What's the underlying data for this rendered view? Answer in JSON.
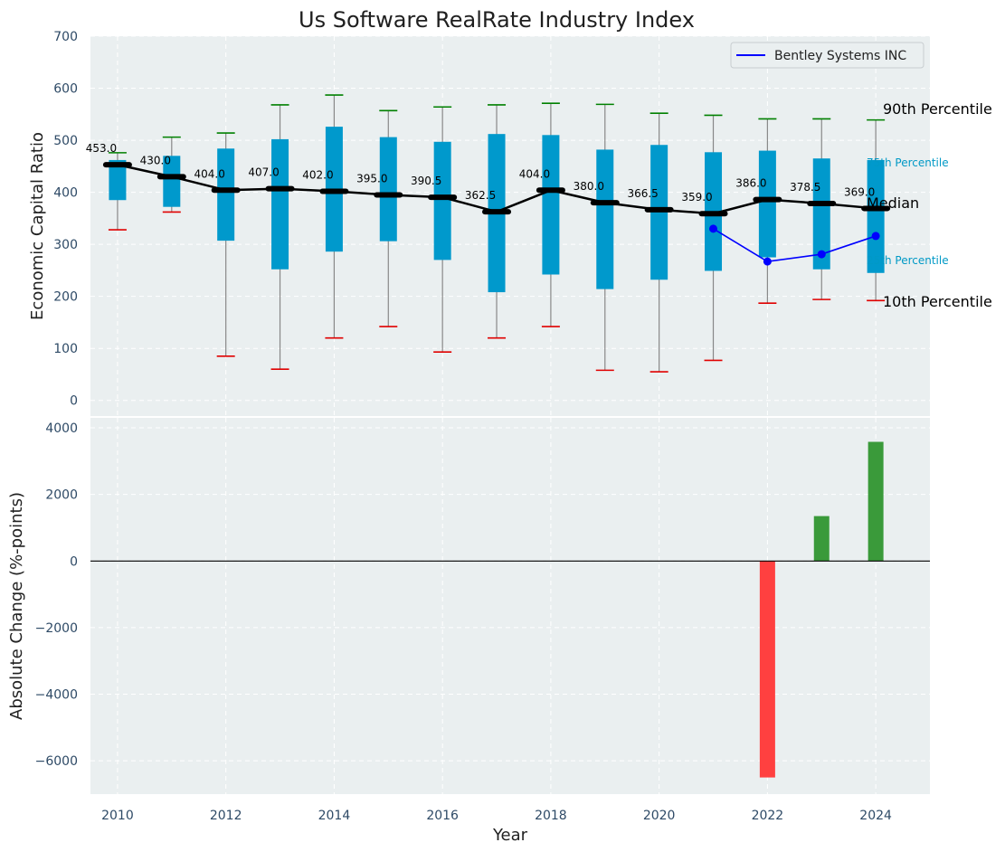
{
  "title": "Us Software RealRate Industry Index",
  "colors": {
    "panel_bg": "#eaeff0",
    "box_fill": "#0099cc",
    "whisker": "#888888",
    "cap_high": "#008000",
    "cap_low": "#e00000",
    "median_line": "#000000",
    "company_line": "#0000ff",
    "bar_pos": "#3a9a3a",
    "bar_neg": "#ff4040"
  },
  "chart_data": [
    {
      "type": "box",
      "ylabel": "Economic Capital Ratio",
      "ylim": [
        -30,
        700
      ],
      "yticks": [
        0,
        100,
        200,
        300,
        400,
        500,
        600,
        700
      ],
      "xlim": [
        2009.5,
        2025
      ],
      "grid": true,
      "legend": {
        "position": "top-right",
        "entries": [
          "Bentley Systems INC"
        ]
      },
      "years": [
        2010,
        2011,
        2012,
        2013,
        2014,
        2015,
        2016,
        2017,
        2018,
        2019,
        2020,
        2021,
        2022,
        2023,
        2024
      ],
      "p10": [
        328,
        362,
        85,
        60,
        120,
        142,
        93,
        120,
        142,
        58,
        55,
        77,
        187,
        194,
        192
      ],
      "p25": [
        385,
        372,
        307,
        252,
        286,
        306,
        270,
        208,
        242,
        214,
        232,
        249,
        275,
        252,
        245
      ],
      "median": [
        453.0,
        430.0,
        404.0,
        407.0,
        402.0,
        395.0,
        390.5,
        362.5,
        404.0,
        380.0,
        366.5,
        359.0,
        386.0,
        378.5,
        369.0
      ],
      "median_labels": [
        "453.0",
        "430.0",
        "404.0",
        "407.0",
        "402.0",
        "395.0",
        "390.5",
        "362.5",
        "404.0",
        "380.0",
        "366.5",
        "359.0",
        "386.0",
        "378.5",
        "369.0"
      ],
      "p75": [
        462,
        470,
        484,
        502,
        526,
        506,
        497,
        512,
        510,
        482,
        491,
        477,
        480,
        465,
        462
      ],
      "p90": [
        476,
        506,
        514,
        568,
        587,
        557,
        564,
        568,
        571,
        569,
        552,
        548,
        541,
        541,
        539
      ],
      "company": {
        "name": "Bentley Systems INC",
        "x": [
          2021,
          2022,
          2023,
          2024
        ],
        "y": [
          330,
          267,
          281,
          316
        ]
      },
      "annotations": {
        "p90": "90th Percentile",
        "p75": "75th Percentile",
        "median": "Median",
        "p25": "25th Percentile",
        "p10": "10th Percentile"
      }
    },
    {
      "type": "bar",
      "xlabel": "Year",
      "ylabel": "Absolute Change (%-points)",
      "ylim": [
        -7000,
        4300
      ],
      "yticks": [
        -6000,
        -4000,
        -2000,
        0,
        2000,
        4000
      ],
      "ytick_labels": [
        "−6000",
        "−4000",
        "−2000",
        "0",
        "2000",
        "4000"
      ],
      "xticks": [
        2010,
        2012,
        2014,
        2016,
        2018,
        2020,
        2022,
        2024
      ],
      "x": [
        2022,
        2023,
        2024
      ],
      "values": [
        -6500,
        1350,
        3580
      ]
    }
  ]
}
